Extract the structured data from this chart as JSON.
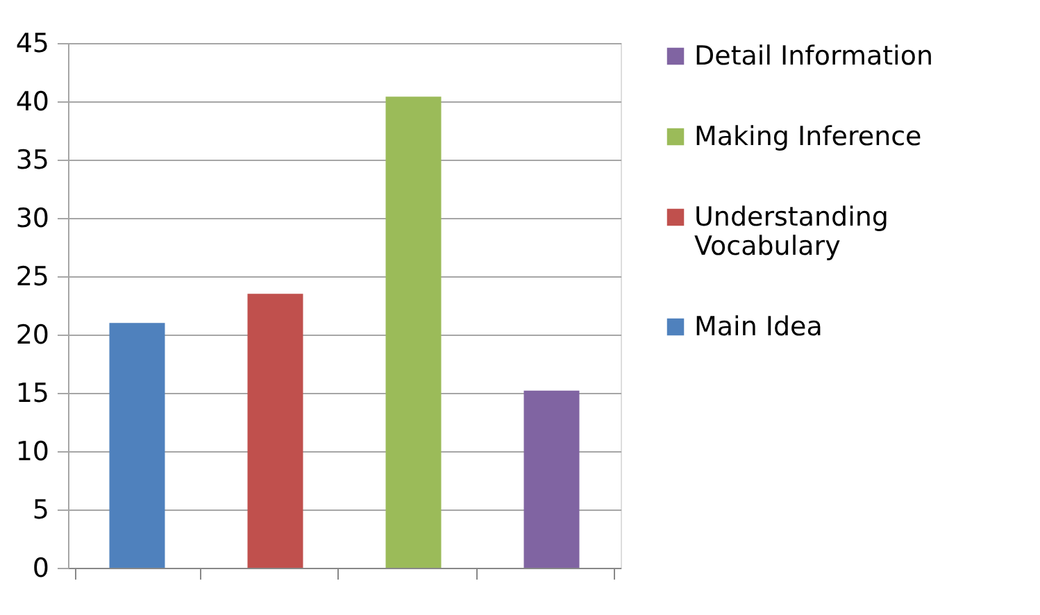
{
  "chart_data": {
    "type": "bar",
    "categories": [
      null,
      null,
      null,
      null
    ],
    "series": [
      {
        "name": "Main Idea",
        "color": "#4f81bd",
        "values": [
          21,
          null,
          null,
          null
        ]
      },
      {
        "name": "Understanding Vocabulary",
        "color": "#c0504d",
        "values": [
          null,
          23.5,
          null,
          null
        ]
      },
      {
        "name": "Making Inference",
        "color": "#9bbb59",
        "values": [
          null,
          null,
          40.4,
          null
        ]
      },
      {
        "name": "Detail Information",
        "color": "#8064a2",
        "values": [
          null,
          null,
          null,
          15.2
        ]
      }
    ],
    "ylim": [
      0,
      45
    ],
    "yticks": [
      0,
      5,
      10,
      15,
      20,
      25,
      30,
      35,
      40,
      45
    ],
    "grid": "y",
    "legend": "right"
  }
}
